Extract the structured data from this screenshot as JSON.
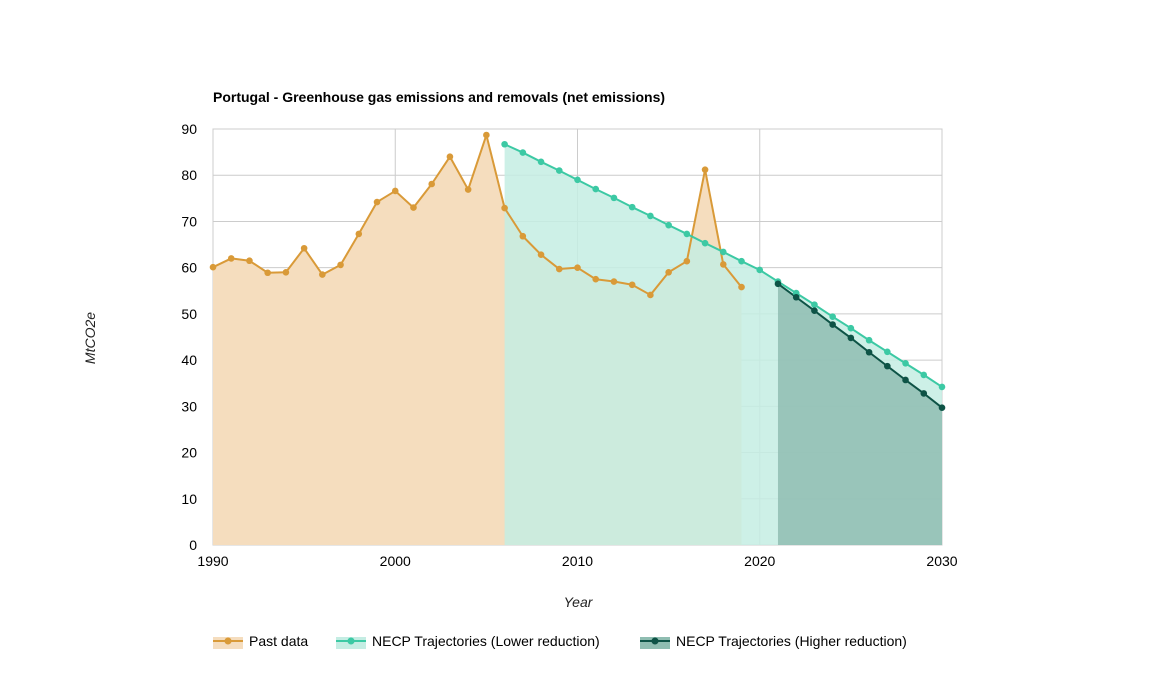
{
  "chart_data": {
    "type": "area",
    "title": "Portugal - Greenhouse gas emissions and removals (net emissions)",
    "xlabel": "Year",
    "ylabel": "MtCO2e",
    "xlim": [
      1990,
      2030
    ],
    "ylim": [
      0,
      90
    ],
    "x_ticks": [
      1990,
      2000,
      2010,
      2020,
      2030
    ],
    "y_ticks": [
      0,
      10,
      20,
      30,
      40,
      50,
      60,
      70,
      80,
      90
    ],
    "grid": true,
    "legend_position": "bottom",
    "series": [
      {
        "name": "Past data",
        "color": "#D99A38",
        "fill": "#F5DDBE",
        "x": [
          1990,
          1991,
          1992,
          1993,
          1994,
          1995,
          1996,
          1997,
          1998,
          1999,
          2000,
          2001,
          2002,
          2003,
          2004,
          2005,
          2006,
          2007,
          2008,
          2009,
          2010,
          2011,
          2012,
          2013,
          2014,
          2015,
          2016,
          2017,
          2018,
          2019
        ],
        "values": [
          60.1,
          62.0,
          61.5,
          58.9,
          59.0,
          64.2,
          58.5,
          60.6,
          67.3,
          74.2,
          76.6,
          73.0,
          78.1,
          84.0,
          76.9,
          88.7,
          72.9,
          66.8,
          62.8,
          59.7,
          60.0,
          57.5,
          57.0,
          56.3,
          54.1,
          59.0,
          61.4,
          81.2,
          60.7,
          55.8
        ]
      },
      {
        "name": "NECP Trajectories (Lower reduction)",
        "color": "#3CC9A4",
        "fill": "#C4EDE3",
        "x": [
          2006,
          2007,
          2008,
          2009,
          2010,
          2011,
          2012,
          2013,
          2014,
          2015,
          2016,
          2017,
          2018,
          2019,
          2020,
          2021,
          2022,
          2023,
          2024,
          2025,
          2026,
          2027,
          2028,
          2029,
          2030
        ],
        "values": [
          86.7,
          84.9,
          82.9,
          81.0,
          79.0,
          77.0,
          75.1,
          73.1,
          71.2,
          69.2,
          67.3,
          65.3,
          63.4,
          61.4,
          59.5,
          57.0,
          54.5,
          52.0,
          49.4,
          46.9,
          44.3,
          41.8,
          39.3,
          36.8,
          34.2
        ]
      },
      {
        "name": "NECP Trajectories (Higher reduction)",
        "color": "#0E5346",
        "fill": "#8FBDB1",
        "x": [
          2021,
          2022,
          2023,
          2024,
          2025,
          2026,
          2027,
          2028,
          2029,
          2030
        ],
        "values": [
          56.5,
          53.6,
          50.7,
          47.7,
          44.8,
          41.7,
          38.7,
          35.7,
          32.8,
          29.7
        ]
      }
    ]
  }
}
